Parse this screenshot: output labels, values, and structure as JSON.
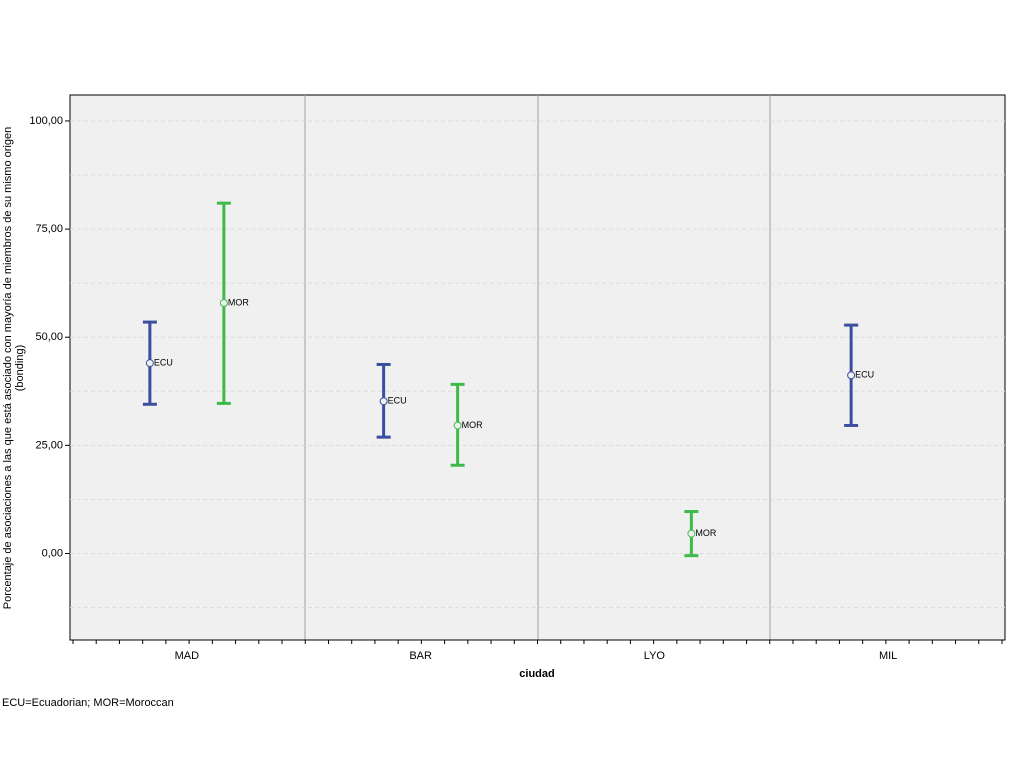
{
  "chart_data": {
    "type": "errorbar",
    "y_label": [
      "Porcentaje de asociaciones a las que está asociado con mayoría de miembros de su mismo origen",
      "(bonding)"
    ],
    "x_label": "ciudad",
    "note": "ECU=Ecuadorian; MOR=Moroccan",
    "categories": [
      "MAD",
      "BAR",
      "LYO",
      "MIL"
    ],
    "series": [
      {
        "name": "ECU",
        "color": "#3b4ea0",
        "values": [
          44.0,
          35.2,
          null,
          41.2
        ],
        "lower": [
          34.5,
          26.9,
          null,
          29.6
        ],
        "upper": [
          53.5,
          43.7,
          null,
          52.8
        ]
      },
      {
        "name": "MOR",
        "color": "#3dba4b",
        "values": [
          57.9,
          29.6,
          4.6,
          null
        ],
        "lower": [
          34.7,
          20.4,
          -0.5,
          null
        ],
        "upper": [
          81.0,
          39.1,
          9.7,
          null
        ]
      }
    ],
    "ylim": [
      -20,
      106
    ],
    "yticks": [
      {
        "value": 0,
        "label": "0,00"
      },
      {
        "value": 25,
        "label": "25,00"
      },
      {
        "value": 50,
        "label": "50,00"
      },
      {
        "value": 75,
        "label": "75,00"
      },
      {
        "value": 100,
        "label": "100,00"
      }
    ],
    "minor_yticks": [
      -12.5,
      12.5,
      37.5,
      62.5,
      87.5
    ],
    "grid": true
  }
}
